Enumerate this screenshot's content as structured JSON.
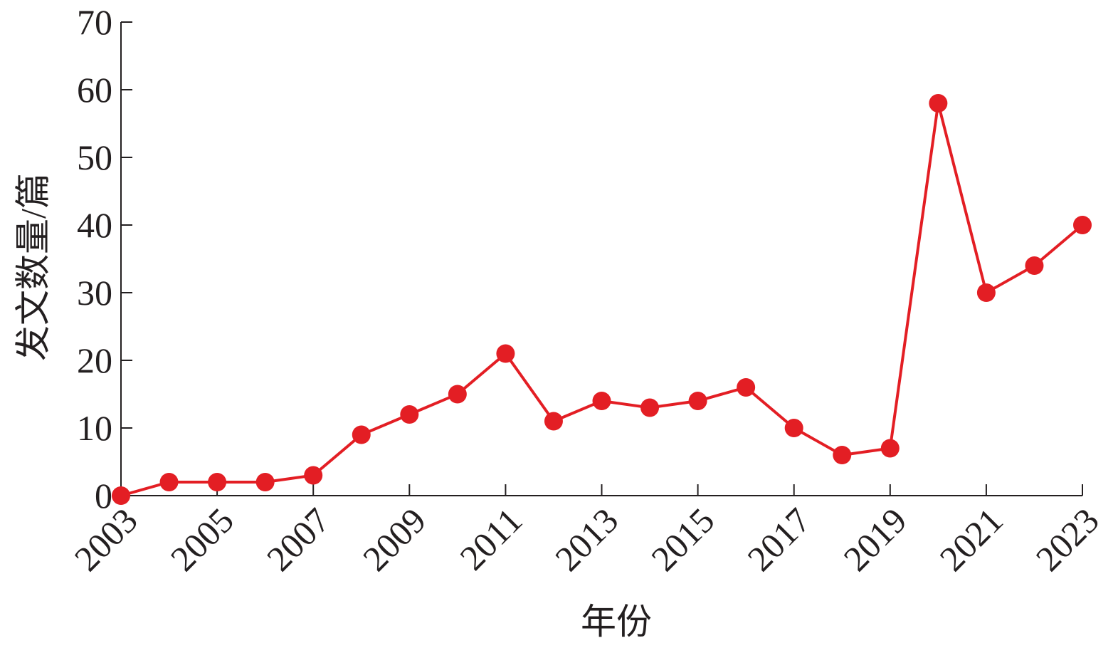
{
  "chart_data": {
    "type": "line",
    "x_label": "年份",
    "y_label": "发文数量/篇",
    "x": [
      2003,
      2004,
      2005,
      2006,
      2007,
      2008,
      2009,
      2010,
      2011,
      2012,
      2013,
      2014,
      2015,
      2016,
      2017,
      2018,
      2019,
      2020,
      2021,
      2022,
      2023
    ],
    "values": [
      0,
      2,
      2,
      2,
      3,
      9,
      12,
      15,
      21,
      11,
      14,
      13,
      14,
      16,
      10,
      6,
      7,
      58,
      30,
      34,
      40
    ],
    "color": "#e31e24",
    "xlim": [
      2003,
      2023
    ],
    "xticks": [
      2003,
      2005,
      2007,
      2009,
      2011,
      2013,
      2015,
      2017,
      2019,
      2021,
      2023
    ],
    "ylim": [
      0,
      70
    ],
    "yticks": [
      0,
      10,
      20,
      30,
      40,
      50,
      60,
      70
    ]
  }
}
